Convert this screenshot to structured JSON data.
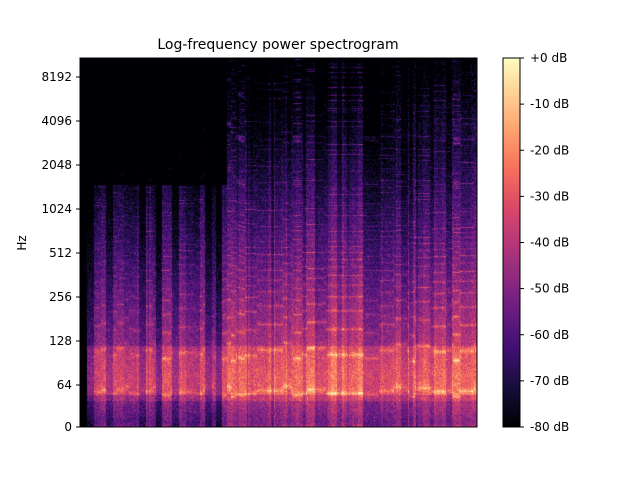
{
  "chart_data": {
    "type": "heatmap",
    "title": "Log-frequency power spectrogram",
    "xlabel": "",
    "ylabel": "Hz",
    "y_scale": "log",
    "y_ticks": [
      "0",
      "64",
      "128",
      "256",
      "512",
      "1024",
      "2048",
      "4096",
      "8192"
    ],
    "y_tick_values": [
      0,
      64,
      128,
      256,
      512,
      1024,
      2048,
      4096,
      8192
    ],
    "ylim": [
      0,
      11025
    ],
    "x_ticks": [],
    "colorbar": {
      "colormap": "magma",
      "range_db": [
        -80,
        0
      ],
      "ticks": [
        "+0 dB",
        "-10 dB",
        "-20 dB",
        "-30 dB",
        "-40 dB",
        "-50 dB",
        "-60 dB",
        "-70 dB",
        "-80 dB"
      ],
      "tick_values": [
        0,
        -10,
        -20,
        -30,
        -40,
        -50,
        -60,
        -70,
        -80
      ]
    },
    "features": {
      "strong_band_hz": [
        55,
        110
      ],
      "quiet_intro_fraction": 0.37,
      "noise_floor_db": -80
    }
  },
  "colors": {
    "magma_stops": [
      "#000004",
      "#140e36",
      "#3b0f70",
      "#641a80",
      "#8c2981",
      "#b73779",
      "#de4968",
      "#f7705c",
      "#fe9f6d",
      "#fecf92",
      "#fcfdbf"
    ]
  }
}
